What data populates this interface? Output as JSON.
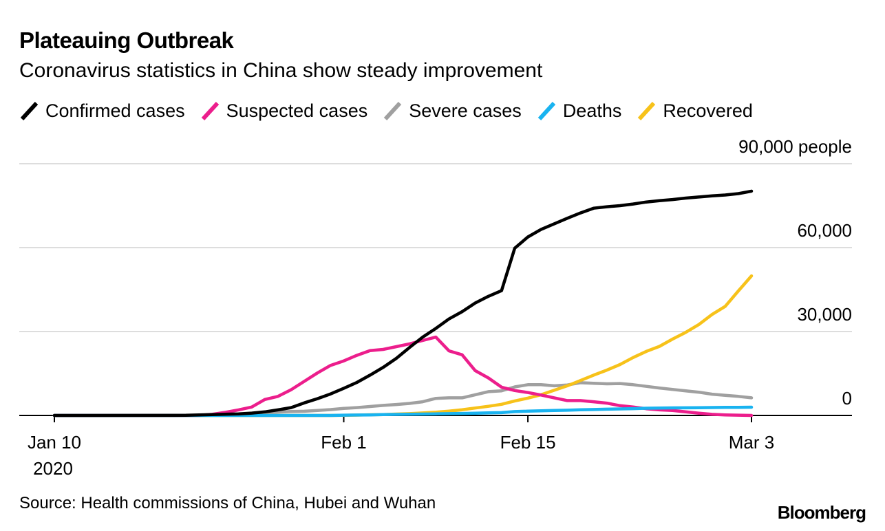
{
  "header": {
    "title": "Plateauing Outbreak",
    "subtitle": "Coronavirus statistics in China show steady improvement"
  },
  "footer": {
    "source": "Source: Health commissions of China, Hubei and Wuhan",
    "brand": "Bloomberg"
  },
  "colors": {
    "confirmed": "#000000",
    "suspected": "#ec1e8c",
    "severe": "#a0a0a0",
    "deaths": "#19b3f0",
    "recovered": "#f7c21a",
    "grid": "#dddddd",
    "axis": "#000000"
  },
  "chart_data": {
    "type": "line",
    "title": "Plateauing Outbreak",
    "subtitle": "Coronavirus statistics in China show steady improvement",
    "xlabel": "",
    "ylabel": "people",
    "ylim": [
      0,
      90000
    ],
    "y_ticks": [
      {
        "value": 0,
        "label": "0"
      },
      {
        "value": 30000,
        "label": "30,000"
      },
      {
        "value": 60000,
        "label": "60,000"
      },
      {
        "value": 90000,
        "label": "90,000 people"
      }
    ],
    "x_range": [
      -1,
      61
    ],
    "x_ticks": [
      {
        "day": 0,
        "label": "Jan 10",
        "sublabel": "2020"
      },
      {
        "day": 22,
        "label": "Feb 1",
        "sublabel": ""
      },
      {
        "day": 36,
        "label": "Feb 15",
        "sublabel": ""
      },
      {
        "day": 53,
        "label": "Mar 3",
        "sublabel": ""
      }
    ],
    "legend_position": "top",
    "series": [
      {
        "name": "Confirmed cases",
        "key": "confirmed",
        "x": [
          0,
          10,
          11,
          12,
          13,
          14,
          15,
          16,
          17,
          18,
          19,
          20,
          21,
          22,
          23,
          24,
          25,
          26,
          27,
          28,
          29,
          30,
          31,
          32,
          33,
          34,
          35,
          36,
          37,
          38,
          39,
          40,
          41,
          42,
          43,
          44,
          45,
          46,
          47,
          48,
          49,
          50,
          51,
          52,
          53
        ],
        "values": [
          0,
          40,
          200,
          300,
          440,
          570,
          830,
          1290,
          2000,
          2800,
          4500,
          6000,
          7700,
          9700,
          11800,
          14400,
          17200,
          20400,
          24300,
          28000,
          31100,
          34500,
          37100,
          40200,
          42600,
          44600,
          59800,
          63800,
          66500,
          68500,
          70500,
          72400,
          74100,
          74600,
          75000,
          75600,
          76300,
          76800,
          77200,
          77700,
          78100,
          78500,
          78800,
          79300,
          80200
        ]
      },
      {
        "name": "Suspected cases",
        "key": "suspected",
        "x": [
          0,
          10,
          11,
          12,
          13,
          14,
          15,
          16,
          17,
          18,
          19,
          20,
          21,
          22,
          23,
          24,
          25,
          26,
          27,
          28,
          29,
          30,
          31,
          32,
          33,
          34,
          35,
          36,
          37,
          38,
          39,
          40,
          41,
          42,
          43,
          44,
          45,
          46,
          47,
          48,
          49,
          50,
          51,
          52,
          53
        ],
        "values": [
          0,
          0,
          0,
          400,
          1100,
          2000,
          3000,
          5700,
          6800,
          9200,
          12200,
          15200,
          17900,
          19500,
          21500,
          23200,
          23600,
          24600,
          25600,
          26800,
          28000,
          23100,
          21700,
          16000,
          13400,
          10100,
          8900,
          8200,
          7300,
          6300,
          5300,
          5300,
          4900,
          4400,
          3500,
          3000,
          2400,
          2000,
          1800,
          1300,
          800,
          400,
          200,
          100,
          0
        ]
      },
      {
        "name": "Severe cases",
        "key": "severe",
        "x": [
          0,
          10,
          11,
          12,
          13,
          14,
          15,
          16,
          17,
          18,
          19,
          20,
          21,
          22,
          23,
          24,
          25,
          26,
          27,
          28,
          29,
          30,
          31,
          32,
          33,
          34,
          35,
          36,
          37,
          38,
          39,
          40,
          41,
          42,
          43,
          44,
          45,
          46,
          47,
          48,
          49,
          50,
          51,
          52,
          53
        ],
        "values": [
          0,
          0,
          100,
          250,
          320,
          460,
          700,
          1000,
          1200,
          1400,
          1500,
          1800,
          2100,
          2500,
          2800,
          3200,
          3600,
          3900,
          4300,
          4900,
          6100,
          6300,
          6300,
          7400,
          8500,
          8800,
          10200,
          11000,
          11000,
          10600,
          10900,
          11700,
          11500,
          11300,
          11400,
          11000,
          10400,
          9800,
          9300,
          8800,
          8300,
          7600,
          7200,
          6800,
          6300
        ]
      },
      {
        "name": "Deaths",
        "key": "deaths",
        "x": [
          0,
          10,
          11,
          12,
          13,
          14,
          15,
          16,
          17,
          18,
          19,
          20,
          21,
          22,
          23,
          24,
          25,
          26,
          27,
          28,
          29,
          30,
          31,
          32,
          33,
          34,
          35,
          36,
          37,
          38,
          39,
          40,
          41,
          42,
          43,
          44,
          45,
          46,
          47,
          48,
          49,
          50,
          51,
          52,
          53
        ],
        "values": [
          0,
          0,
          0,
          0,
          0,
          0,
          0,
          0,
          0,
          0,
          0,
          0,
          0,
          100,
          150,
          200,
          300,
          360,
          430,
          490,
          560,
          640,
          720,
          810,
          900,
          1020,
          1370,
          1520,
          1660,
          1770,
          1870,
          2010,
          2120,
          2240,
          2340,
          2440,
          2590,
          2660,
          2710,
          2740,
          2790,
          2840,
          2870,
          2910,
          2940
        ]
      },
      {
        "name": "Recovered",
        "key": "recovered",
        "x": [
          0,
          10,
          11,
          12,
          13,
          14,
          15,
          16,
          17,
          18,
          19,
          20,
          21,
          22,
          23,
          24,
          25,
          26,
          27,
          28,
          29,
          30,
          31,
          32,
          33,
          34,
          35,
          36,
          37,
          38,
          39,
          40,
          41,
          42,
          43,
          44,
          45,
          46,
          47,
          48,
          49,
          50,
          51,
          52,
          53
        ],
        "values": [
          0,
          0,
          0,
          0,
          0,
          0,
          0,
          0,
          0,
          0,
          0,
          0,
          0,
          50,
          130,
          240,
          330,
          480,
          630,
          890,
          1150,
          1540,
          2050,
          2650,
          3280,
          3990,
          5190,
          6200,
          7400,
          9000,
          10600,
          12500,
          14400,
          16200,
          18200,
          20700,
          22900,
          24700,
          27300,
          29700,
          32500,
          36100,
          39000,
          44500,
          49900
        ]
      }
    ]
  }
}
